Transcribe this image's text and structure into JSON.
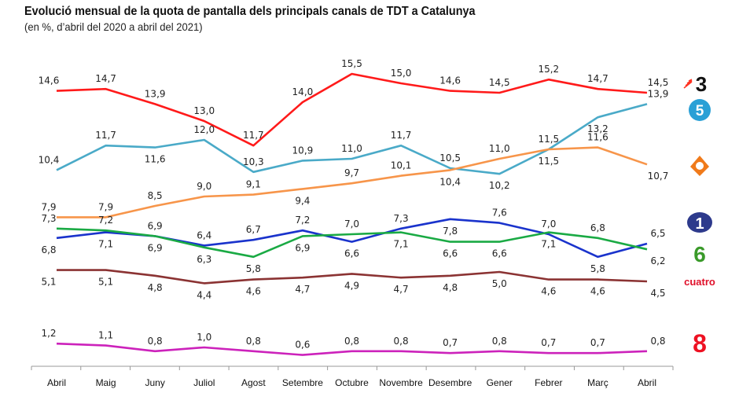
{
  "chart_data": {
    "type": "line",
    "title": "Evolució mensual de la quota de pantalla dels principals canals de TDT a Catalunya",
    "subtitle": "(en %, d’abril del 2020 a abril del 2021)",
    "categories": [
      "Abril",
      "Maig",
      "Juny",
      "Juliol",
      "Agost",
      "Setembre",
      "Octubre",
      "Novembre",
      "Desembre",
      "Gener",
      "Febrer",
      "Març",
      "Abril"
    ],
    "ylim": [
      0,
      16
    ],
    "grid": false,
    "legend": "right (channel logos)",
    "series": [
      {
        "logo": "tv3-icon",
        "logo_text": "3",
        "color": "#ff1a1a",
        "values": [
          14.6,
          14.7,
          13.9,
          13.0,
          11.7,
          14.0,
          15.5,
          15.0,
          14.6,
          14.5,
          15.2,
          14.7,
          14.5
        ]
      },
      {
        "logo": "telecinco-icon",
        "logo_text": "5",
        "color": "#4aaac8",
        "values": [
          10.4,
          11.7,
          11.6,
          12.0,
          10.3,
          10.9,
          11.0,
          11.7,
          10.5,
          10.2,
          11.5,
          13.2,
          13.9
        ]
      },
      {
        "logo": "antena3-icon",
        "logo_text": "",
        "color": "#f7954a",
        "values": [
          7.9,
          7.9,
          8.5,
          9.0,
          9.1,
          9.4,
          9.7,
          10.1,
          10.4,
          11.0,
          11.5,
          11.6,
          10.7
        ]
      },
      {
        "logo": "la1-icon",
        "logo_text": "1",
        "color": "#1a33cc",
        "values": [
          6.8,
          7.1,
          6.9,
          6.4,
          6.7,
          7.2,
          6.6,
          7.3,
          7.8,
          7.6,
          7.0,
          5.8,
          6.5
        ]
      },
      {
        "logo": "lasexta-icon",
        "logo_text": "6",
        "color": "#1aaa44",
        "values": [
          7.3,
          7.2,
          6.9,
          6.3,
          5.8,
          6.9,
          7.0,
          7.1,
          6.6,
          6.6,
          7.1,
          6.8,
          6.2
        ]
      },
      {
        "logo": "cuatro-icon",
        "logo_text": "cuatro",
        "color": "#8b3333",
        "values": [
          5.1,
          5.1,
          4.8,
          4.4,
          4.6,
          4.7,
          4.9,
          4.7,
          4.8,
          5.0,
          4.6,
          4.6,
          4.5
        ]
      },
      {
        "logo": "8tv-icon",
        "logo_text": "8",
        "color": "#cc22bb",
        "values": [
          1.2,
          1.1,
          0.8,
          1.0,
          0.8,
          0.6,
          0.8,
          0.8,
          0.7,
          0.8,
          0.7,
          0.7,
          0.8
        ]
      }
    ]
  }
}
